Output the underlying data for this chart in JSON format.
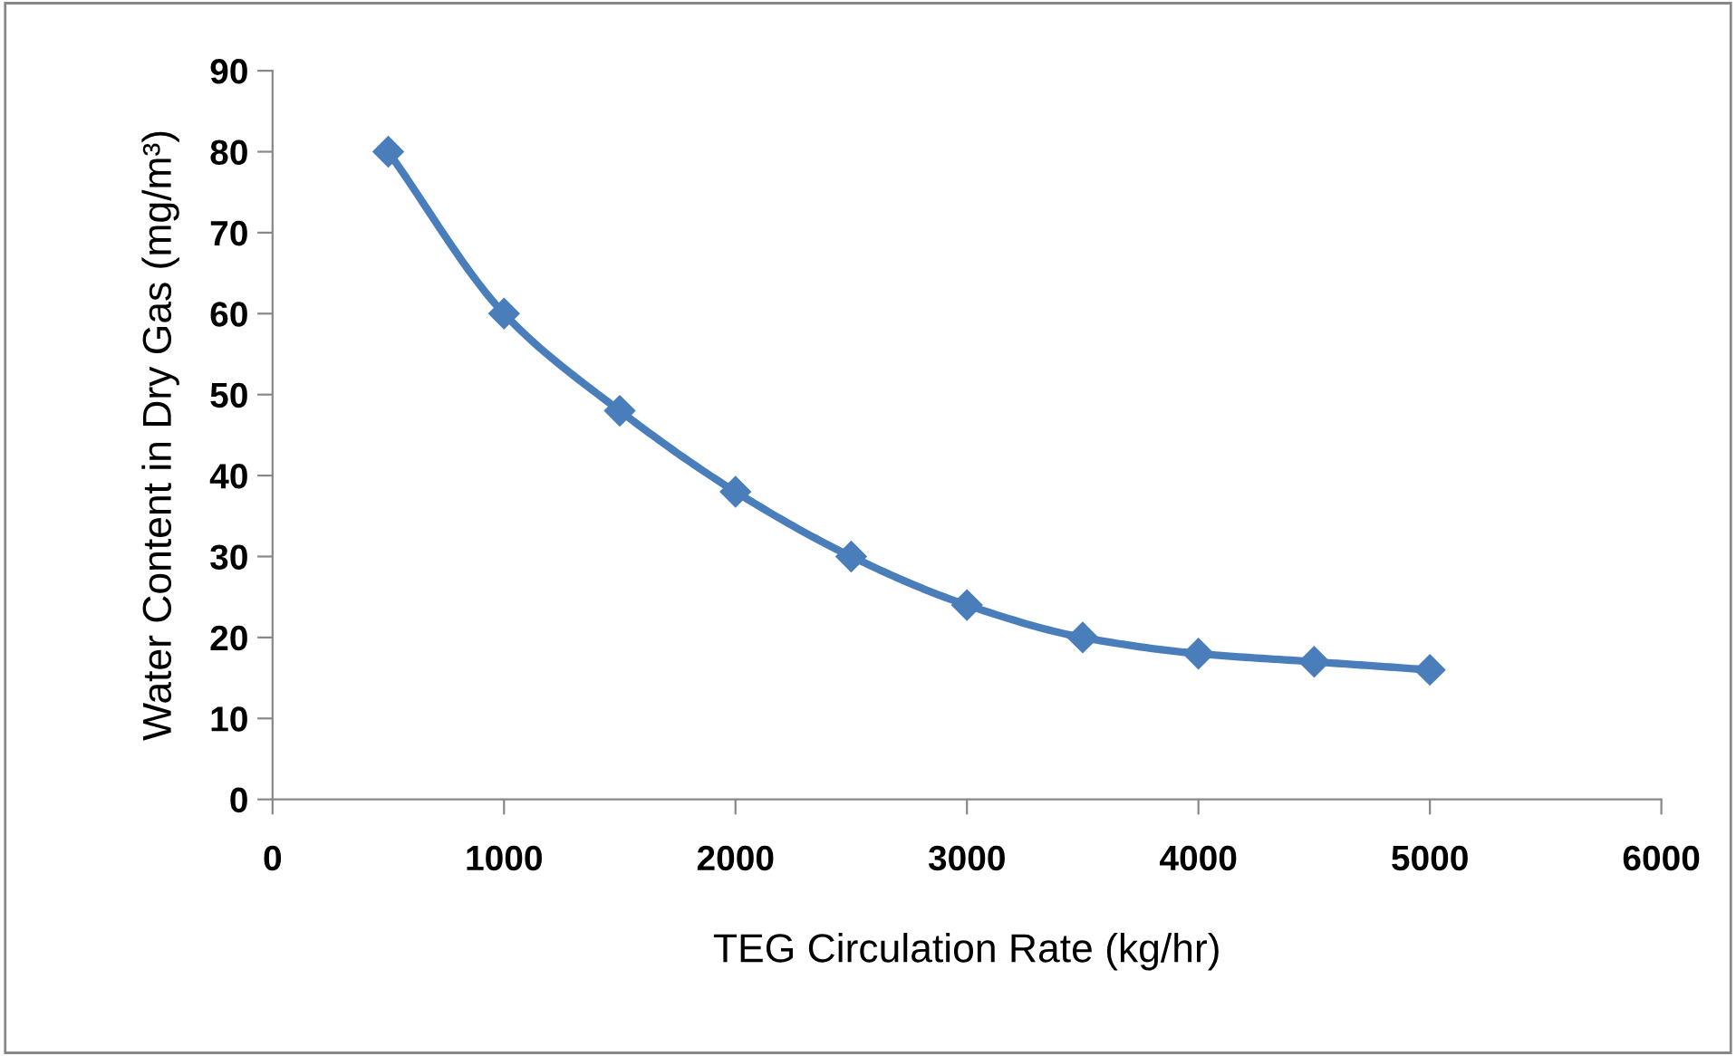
{
  "chart_data": {
    "type": "line",
    "xlabel": "TEG Circulation Rate (kg/hr)",
    "ylabel": "Water Content in Dry Gas (mg/m³)",
    "x": [
      500,
      1000,
      1500,
      2000,
      2500,
      3000,
      3500,
      4000,
      4500,
      5000
    ],
    "series": [
      {
        "color": "#4a7ebb",
        "values": [
          80,
          60,
          48,
          38,
          30,
          24,
          20,
          18,
          17,
          16
        ]
      }
    ],
    "xlim": [
      0,
      6000
    ],
    "xticks": [
      0,
      1000,
      2000,
      3000,
      4000,
      5000,
      6000
    ],
    "ylim": [
      0,
      90
    ],
    "yticks": [
      0,
      10,
      20,
      30,
      40,
      50,
      60,
      70,
      80,
      90
    ],
    "marker": "diamond",
    "grid": false,
    "legend": false
  }
}
